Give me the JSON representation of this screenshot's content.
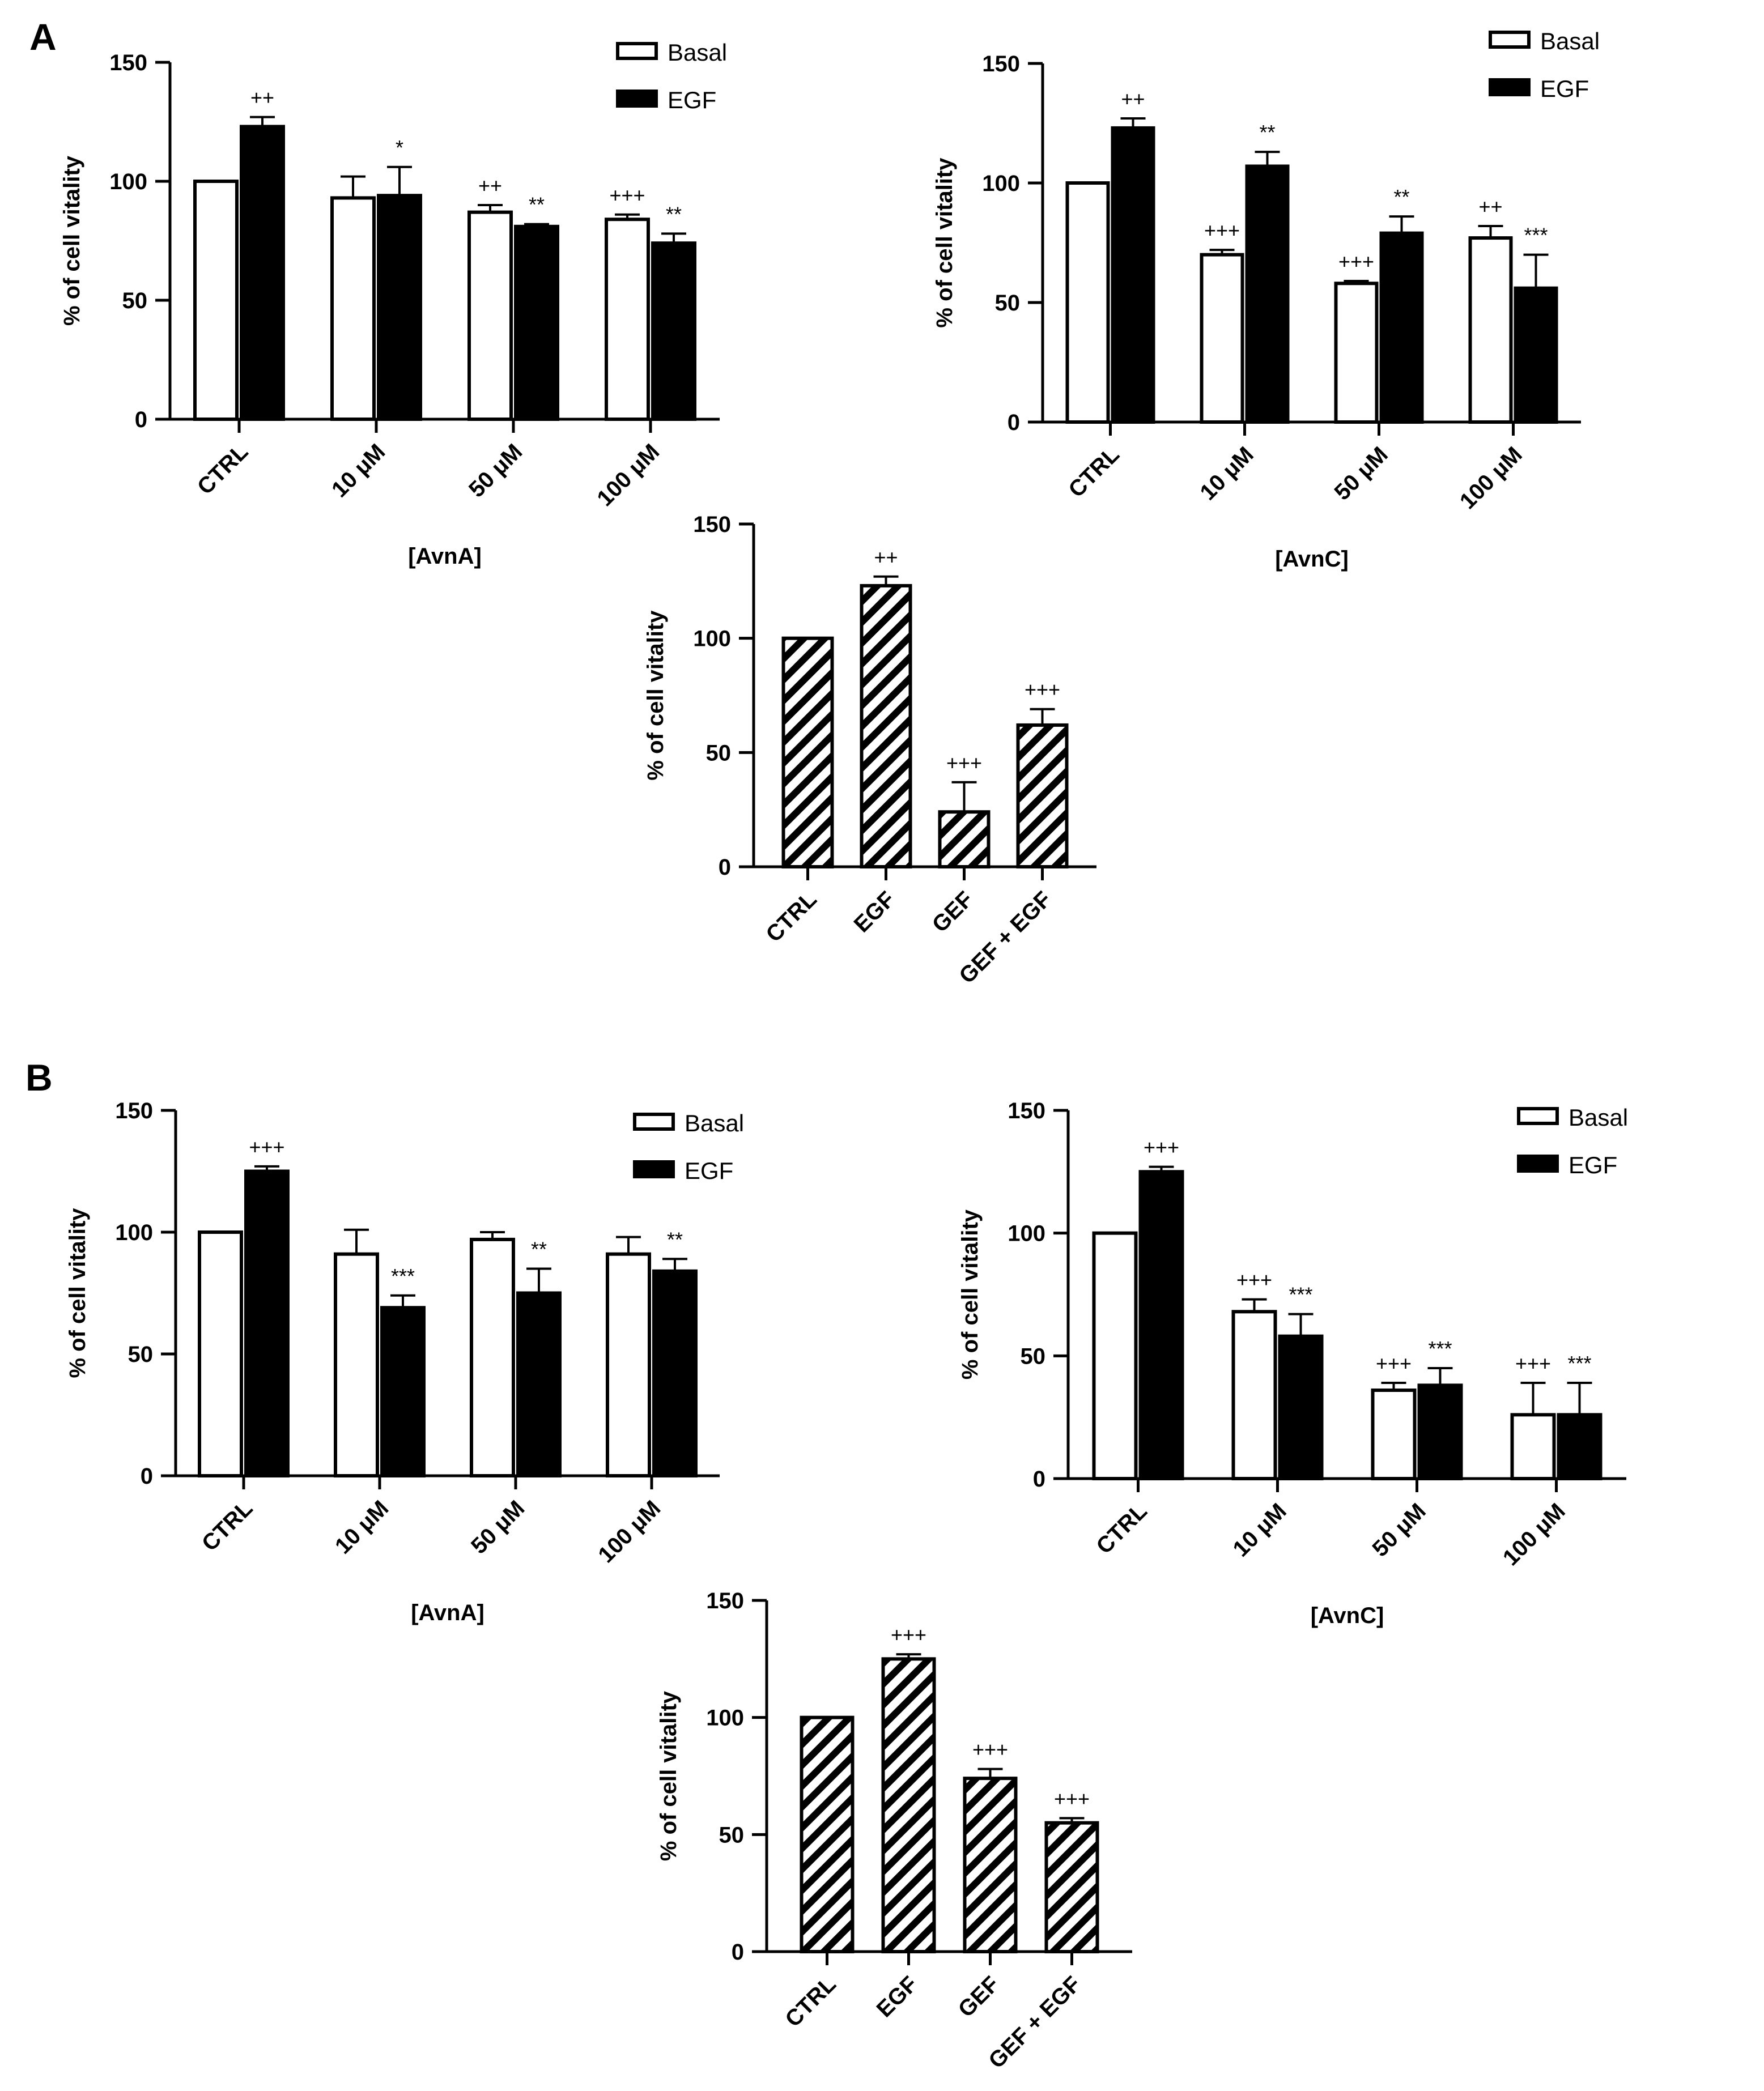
{
  "panels": [
    {
      "letter": "A"
    },
    {
      "letter": "B"
    }
  ],
  "chart_data": [
    {
      "panel": "A",
      "type": "bar",
      "categories": [
        "CTRL",
        "10 μM",
        "50 μM",
        "100 μM"
      ],
      "xlabel": "[AvnA]",
      "ylabel": "% of cell vitality",
      "ylim": [
        0,
        150
      ],
      "yticks": [
        "0",
        "50",
        "100",
        "150"
      ],
      "legend": "top-right",
      "series": [
        {
          "name": "Basal",
          "fill": "#ffffff",
          "values": [
            100,
            93,
            87,
            84
          ],
          "errors": [
            0,
            9,
            3,
            2
          ],
          "sig": [
            "",
            "",
            "++",
            "+++"
          ]
        },
        {
          "name": "EGF",
          "fill": "#000000",
          "values": [
            123,
            94,
            81,
            74
          ],
          "errors": [
            4,
            12,
            1,
            4
          ],
          "sig": [
            "++",
            "*",
            "**",
            "**"
          ]
        }
      ]
    },
    {
      "panel": "A",
      "type": "bar",
      "categories": [
        "CTRL",
        "10 μM",
        "50 μM",
        "100 μM"
      ],
      "xlabel": "[AvnC]",
      "ylabel": "% of cell vitality",
      "ylim": [
        0,
        150
      ],
      "yticks": [
        "0",
        "50",
        "100",
        "150"
      ],
      "legend": "top-right",
      "series": [
        {
          "name": "Basal",
          "fill": "#ffffff",
          "values": [
            100,
            70,
            58,
            77
          ],
          "errors": [
            0,
            2,
            1,
            5
          ],
          "sig": [
            "",
            "+++",
            "+++",
            "++"
          ]
        },
        {
          "name": "EGF",
          "fill": "#000000",
          "values": [
            123,
            107,
            79,
            56
          ],
          "errors": [
            4,
            6,
            7,
            14
          ],
          "sig": [
            "++",
            "**",
            "**",
            "***"
          ]
        }
      ]
    },
    {
      "panel": "A",
      "type": "bar",
      "categories": [
        "CTRL",
        "EGF",
        "GEF",
        "GEF + EGF"
      ],
      "xlabel": "",
      "ylabel": "% of cell vitality",
      "ylim": [
        0,
        150
      ],
      "yticks": [
        "0",
        "50",
        "100",
        "150"
      ],
      "pattern": "hatched",
      "series": [
        {
          "values": [
            100,
            123,
            24,
            62
          ],
          "errors": [
            0,
            4,
            13,
            7
          ],
          "sig": [
            "",
            "++",
            "+++",
            "+++"
          ]
        }
      ]
    },
    {
      "panel": "B",
      "type": "bar",
      "categories": [
        "CTRL",
        "10 μM",
        "50 μM",
        "100 μM"
      ],
      "xlabel": "[AvnA]",
      "ylabel": "% of cell vitality",
      "ylim": [
        0,
        150
      ],
      "yticks": [
        "0",
        "50",
        "100",
        "150"
      ],
      "legend": "top-right",
      "series": [
        {
          "name": "Basal",
          "fill": "#ffffff",
          "values": [
            100,
            91,
            97,
            91
          ],
          "errors": [
            0,
            10,
            3,
            7
          ],
          "sig": [
            "",
            "",
            "",
            ""
          ]
        },
        {
          "name": "EGF",
          "fill": "#000000",
          "values": [
            125,
            69,
            75,
            84
          ],
          "errors": [
            2,
            5,
            10,
            5
          ],
          "sig": [
            "+++",
            "***",
            "**",
            "**"
          ]
        }
      ]
    },
    {
      "panel": "B",
      "type": "bar",
      "categories": [
        "CTRL",
        "10 μM",
        "50 μM",
        "100 μM"
      ],
      "xlabel": "[AvnC]",
      "ylabel": "% of cell vitality",
      "ylim": [
        0,
        150
      ],
      "yticks": [
        "0",
        "50",
        "100",
        "150"
      ],
      "legend": "top-right",
      "series": [
        {
          "name": "Basal",
          "fill": "#ffffff",
          "values": [
            100,
            68,
            36,
            26
          ],
          "errors": [
            0,
            5,
            3,
            13
          ],
          "sig": [
            "",
            "+++",
            "+++",
            "+++"
          ]
        },
        {
          "name": "EGF",
          "fill": "#000000",
          "values": [
            125,
            58,
            38,
            26
          ],
          "errors": [
            2,
            9,
            7,
            13
          ],
          "sig": [
            "+++",
            "***",
            "***",
            "***"
          ]
        }
      ]
    },
    {
      "panel": "B",
      "type": "bar",
      "categories": [
        "CTRL",
        "EGF",
        "GEF",
        "GEF + EGF"
      ],
      "xlabel": "",
      "ylabel": "% of cell vitality",
      "ylim": [
        0,
        150
      ],
      "yticks": [
        "0",
        "50",
        "100",
        "150"
      ],
      "pattern": "hatched",
      "series": [
        {
          "values": [
            100,
            125,
            74,
            55
          ],
          "errors": [
            0,
            2,
            4,
            2
          ],
          "sig": [
            "",
            "+++",
            "+++",
            "+++"
          ]
        }
      ]
    }
  ]
}
